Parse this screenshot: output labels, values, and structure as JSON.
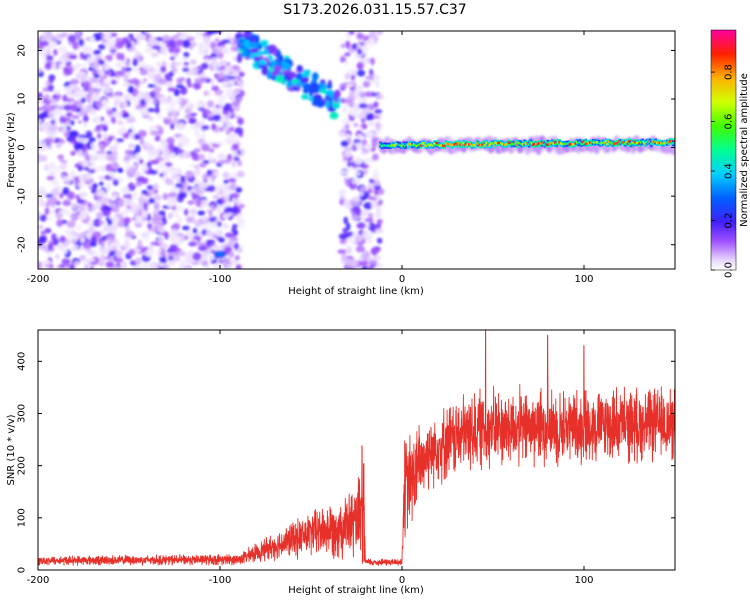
{
  "title": "S173.2026.031.15.57.C37",
  "chart_data": [
    {
      "type": "heatmap",
      "xlabel": "Height of straight line (km)",
      "ylabel": "Frequency (Hz)",
      "xlim": [
        -200,
        150
      ],
      "ylim": [
        -25,
        24
      ],
      "xticks": [
        -200,
        -100,
        0,
        100
      ],
      "xtick_labels": [
        "-200",
        "-100",
        "0",
        "100"
      ],
      "yticks": [
        -20,
        -10,
        0,
        10,
        20
      ],
      "ytick_labels": [
        "-20",
        "-10",
        "0",
        "10",
        "20"
      ],
      "colorbar": {
        "label": "Normalized spectral amplitude",
        "range": [
          0,
          0.97
        ],
        "ticks": [
          0.0,
          0.2,
          0.4,
          0.6,
          0.8
        ],
        "tick_labels": [
          "0.0",
          "0.2",
          "0.4",
          "0.6",
          "0.8"
        ]
      },
      "features": [
        {
          "name": "broadband noise",
          "x_range": [
            -200,
            -88
          ],
          "f_range": [
            -25,
            24
          ],
          "amplitude": 0.15
        },
        {
          "name": "broadband noise",
          "x_range": [
            -33,
            -12
          ],
          "f_range": [
            -25,
            24
          ],
          "amplitude": 0.15
        },
        {
          "name": "descending chirp",
          "x_start": -90,
          "x_end": -35,
          "f_start": 22,
          "f_end": 9,
          "amplitude": 0.35
        },
        {
          "name": "isolated blob",
          "x": -100,
          "f": -22,
          "amplitude": 0.25
        },
        {
          "name": "tonal line",
          "x_range": [
            -12,
            150
          ],
          "f": 0.5,
          "amplitude_peak": 0.95
        }
      ]
    },
    {
      "type": "line",
      "xlabel": "Height of straight line (km)",
      "ylabel": "SNR (10 * v/v)",
      "xlim": [
        -200,
        150
      ],
      "ylim": [
        0,
        460
      ],
      "xticks": [
        -200,
        -100,
        0,
        100
      ],
      "xtick_labels": [
        "-200",
        "-100",
        "0",
        "100"
      ],
      "yticks": [
        0,
        100,
        200,
        300,
        400
      ],
      "ytick_labels": [
        "0",
        "100",
        "200",
        "300",
        "400"
      ],
      "series": [
        {
          "name": "SNR",
          "color": "#e8302a",
          "envelope": [
            {
              "x": -200,
              "mean": 18,
              "spread": 10
            },
            {
              "x": -90,
              "mean": 20,
              "spread": 12
            },
            {
              "x": -75,
              "mean": 40,
              "spread": 25
            },
            {
              "x": -50,
              "mean": 70,
              "spread": 50
            },
            {
              "x": -25,
              "mean": 90,
              "spread": 80
            },
            {
              "x": -21,
              "mean": 100,
              "spread": 130
            },
            {
              "x": -20,
              "mean": 15,
              "spread": 8
            },
            {
              "x": 0,
              "mean": 15,
              "spread": 8
            },
            {
              "x": 1,
              "mean": 150,
              "spread": 120
            },
            {
              "x": 15,
              "mean": 230,
              "spread": 80
            },
            {
              "x": 40,
              "mean": 270,
              "spread": 90
            },
            {
              "x": 80,
              "mean": 275,
              "spread": 85
            },
            {
              "x": 150,
              "mean": 280,
              "spread": 80
            }
          ],
          "peaks": [
            {
              "x": -22,
              "y": 238
            },
            {
              "x": 46,
              "y": 462
            },
            {
              "x": 80,
              "y": 450
            },
            {
              "x": 100,
              "y": 430
            }
          ]
        }
      ]
    }
  ]
}
